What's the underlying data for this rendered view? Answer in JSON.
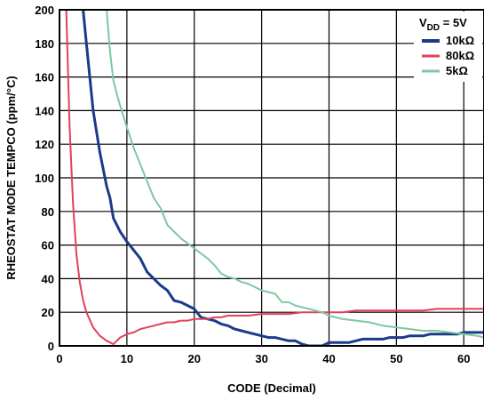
{
  "chart_data": {
    "type": "line",
    "xlabel": "CODE (Decimal)",
    "ylabel": "RHEOSTAT MODE TEMPCO (ppm/°C)",
    "xlim": [
      0,
      63
    ],
    "ylim": [
      0,
      200
    ],
    "xticks": [
      0,
      10,
      20,
      30,
      40,
      50,
      60
    ],
    "yticks": [
      0,
      20,
      40,
      60,
      80,
      100,
      120,
      140,
      160,
      180,
      200
    ],
    "grid": true,
    "legend_position": "top-right",
    "legend_title": {
      "prefix": "V",
      "subscript": "DD",
      "suffix": " = 5V"
    },
    "series": [
      {
        "name": "10kΩ",
        "color": "#1a3a8a",
        "width": 3,
        "x": [
          3.5,
          4,
          5,
          6,
          7,
          7.5,
          8,
          9,
          10,
          11,
          12,
          13,
          14,
          15,
          16,
          17,
          18,
          19,
          20,
          21,
          22,
          23,
          24,
          25,
          26,
          27,
          28,
          29,
          30,
          31,
          32,
          33,
          34,
          35,
          36,
          37,
          38,
          39,
          40,
          41,
          42,
          43,
          44,
          45,
          46,
          47,
          48,
          49,
          50,
          51,
          52,
          53,
          54,
          55,
          56,
          57,
          58,
          59,
          60,
          61,
          62,
          63
        ],
        "y": [
          200,
          180,
          140,
          115,
          95,
          88,
          76,
          68,
          62,
          57,
          52,
          44,
          40,
          36,
          33,
          27,
          26,
          24,
          22,
          17,
          16,
          15,
          13,
          12,
          10,
          9,
          8,
          7,
          6,
          5,
          5,
          4,
          3,
          3,
          1,
          0,
          0,
          0,
          2,
          2,
          2,
          2,
          3,
          4,
          4,
          4,
          4,
          5,
          5,
          5,
          6,
          6,
          6,
          7,
          7,
          7,
          7,
          7,
          8,
          8,
          8,
          8
        ]
      },
      {
        "name": "80kΩ",
        "color": "#e0415c",
        "width": 2,
        "x": [
          1,
          1.5,
          2,
          2.5,
          3,
          3.5,
          4,
          5,
          6,
          7,
          8,
          9,
          10,
          11,
          12,
          13,
          14,
          15,
          16,
          17,
          18,
          19,
          20,
          21,
          22,
          23,
          24,
          25,
          26,
          28,
          30,
          32,
          34,
          36,
          38,
          40,
          42,
          44,
          46,
          48,
          50,
          52,
          54,
          56,
          58,
          60,
          62,
          63
        ],
        "y": [
          200,
          130,
          85,
          55,
          38,
          27,
          20,
          11,
          6,
          3,
          1,
          5,
          7,
          8,
          10,
          11,
          12,
          13,
          14,
          14,
          15,
          15,
          16,
          16,
          16,
          17,
          17,
          18,
          18,
          18,
          19,
          19,
          19,
          20,
          20,
          20,
          20,
          21,
          21,
          21,
          21,
          21,
          21,
          22,
          22,
          22,
          22,
          22
        ]
      },
      {
        "name": "5kΩ",
        "color": "#7ec8a0",
        "width": 2,
        "x": [
          7,
          7.5,
          8,
          8.5,
          9,
          10,
          11,
          12,
          13,
          14,
          15,
          16,
          17,
          18,
          19,
          20,
          21,
          22,
          23,
          24,
          25,
          26,
          27,
          28,
          29,
          30,
          31,
          32,
          33,
          34,
          35,
          36,
          37,
          38,
          39,
          40,
          42,
          44,
          46,
          48,
          50,
          52,
          54,
          56,
          58,
          60,
          62,
          63
        ],
        "y": [
          200,
          175,
          158,
          150,
          143,
          130,
          118,
          108,
          98,
          88,
          82,
          72,
          68,
          64,
          61,
          58,
          55,
          52,
          48,
          43,
          41,
          40,
          38,
          37,
          35,
          33,
          32,
          31,
          26,
          26,
          24,
          23,
          22,
          21,
          20,
          18,
          16,
          15,
          14,
          12,
          11,
          10,
          9,
          9,
          8,
          7,
          6,
          5
        ]
      }
    ]
  }
}
